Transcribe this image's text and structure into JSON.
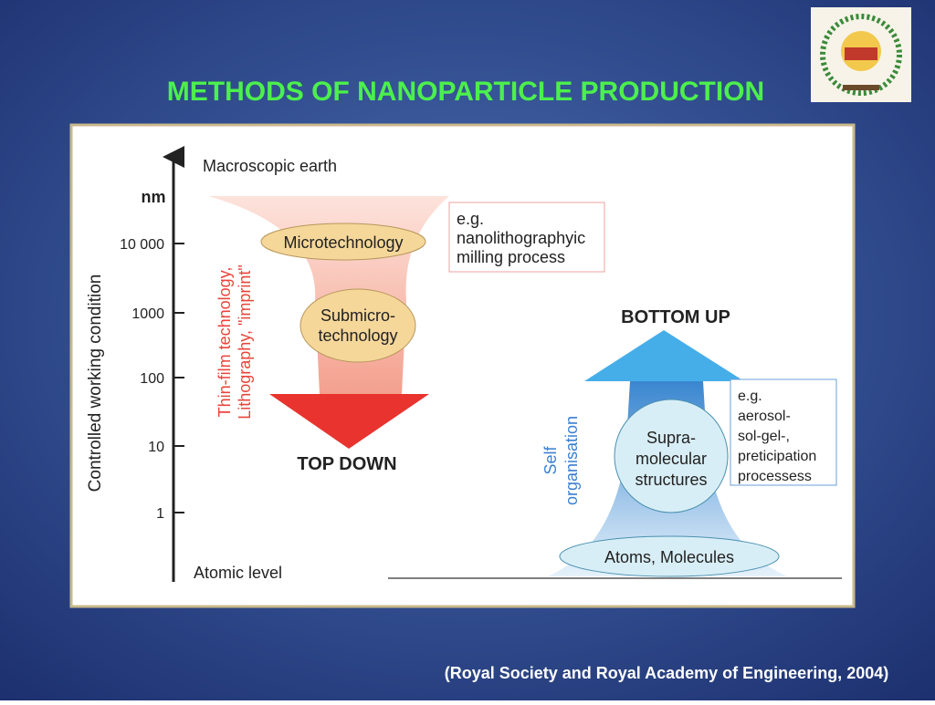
{
  "header": {
    "title": "METHODS OF NANOPARTICLE PRODUCTION"
  },
  "diagram": {
    "axis_label": "Controlled working condition",
    "unit": "nm",
    "ticks": [
      "10 000",
      "1000",
      "100",
      "10",
      "1"
    ],
    "top_label": "Macroscopic earth",
    "bottom_label": "Atomic level",
    "top_down": {
      "label": "TOP DOWN",
      "stage1": "Microtechnology",
      "stage2": [
        "Submicro-",
        "technology"
      ],
      "side": [
        "Thin-film technology,",
        "Lithography, \"imprint\""
      ],
      "note": [
        "e.g.",
        "nanolithographyic",
        "milling process"
      ]
    },
    "bottom_up": {
      "label": "BOTTOM UP",
      "stage1": [
        "Supra-",
        "molecular",
        "structures"
      ],
      "base": "Atoms, Molecules",
      "side": [
        "Self",
        "organisation"
      ],
      "note": [
        "e.g.",
        "aerosol-",
        "sol-gel-,",
        "preticipation",
        "processess"
      ]
    }
  },
  "footer": {
    "citation": "(Royal Society and Royal Academy of Engineering, 2004)"
  }
}
